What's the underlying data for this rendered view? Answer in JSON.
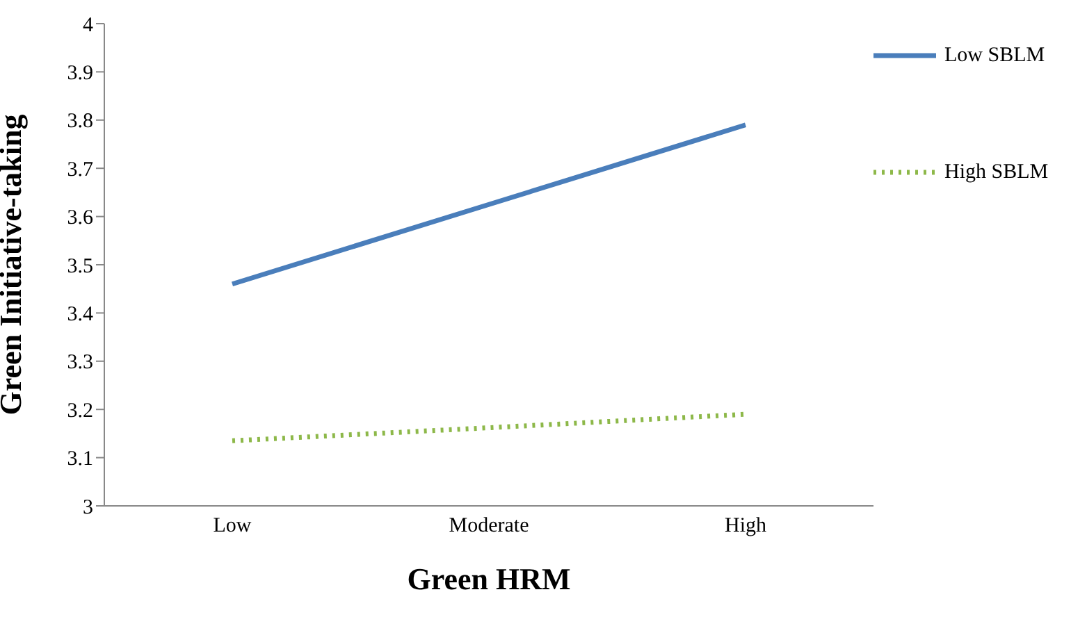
{
  "chart_data": {
    "type": "line",
    "xlabel": "Green HRM",
    "ylabel": "Green Initiative-taking",
    "categories": [
      "Low",
      "Moderate",
      "High"
    ],
    "series": [
      {
        "name": "Low SBLM",
        "color": "#4a7ebb",
        "values": [
          3.46,
          3.625,
          3.79
        ],
        "line_style": "solid"
      },
      {
        "name": "High SBLM",
        "color": "#8db849",
        "values": [
          3.135,
          3.162,
          3.19
        ],
        "line_style": "dotted"
      }
    ],
    "ylim": [
      3,
      4
    ],
    "yticks": [
      3,
      3.1,
      3.2,
      3.3,
      3.4,
      3.5,
      3.6,
      3.7,
      3.8,
      3.9,
      4
    ],
    "grid": false,
    "legend": "right",
    "marker": "none"
  }
}
